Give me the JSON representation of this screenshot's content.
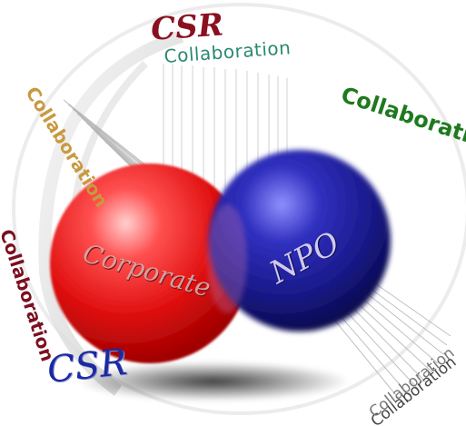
{
  "labels": {
    "csr_top": "CSR",
    "collab_top": "Collaboration",
    "collab_left_upper": "Collaboration",
    "collab_right": "Collaboration",
    "corporate": "Corporate",
    "npo": "NPO",
    "collab_left_lower": "Collaboration",
    "csr_bottom": "CSR",
    "collab_bottom_right_a": "Collaboration",
    "collab_bottom_right_b": "Collaboration"
  },
  "colors": {
    "corporate_sphere": "#e01010",
    "npo_sphere": "#1a1a8c",
    "csr_top_text": "#8a1020",
    "collab_top_text": "#2a8a70",
    "collab_right_text": "#1e7a1e",
    "collab_left_upper_text": "#c89a40",
    "csr_bottom_text": "#1a2aa0",
    "collab_left_lower_text": "#7a1020"
  }
}
